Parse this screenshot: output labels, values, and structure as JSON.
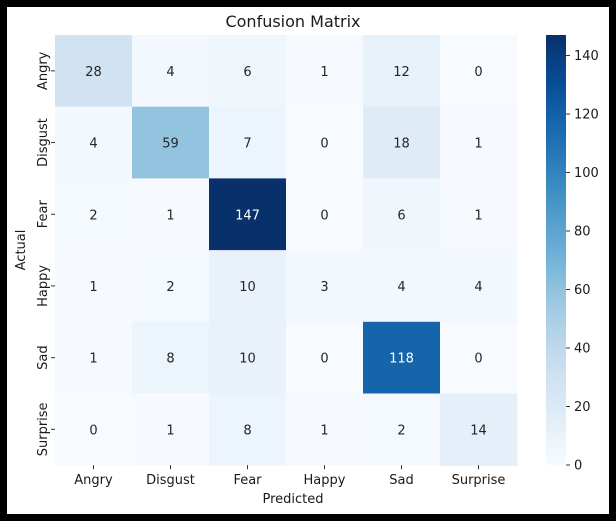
{
  "chart_data": {
    "type": "heatmap",
    "title": "Confusion Matrix",
    "xlabel": "Predicted",
    "ylabel": "Actual",
    "x_categories": [
      "Angry",
      "Disgust",
      "Fear",
      "Happy",
      "Sad",
      "Surprise"
    ],
    "y_categories": [
      "Angry",
      "Disgust",
      "Fear",
      "Happy",
      "Sad",
      "Surprise"
    ],
    "values": [
      [
        28,
        4,
        6,
        1,
        12,
        0
      ],
      [
        4,
        59,
        7,
        0,
        18,
        1
      ],
      [
        2,
        1,
        147,
        0,
        6,
        1
      ],
      [
        1,
        2,
        10,
        3,
        4,
        4
      ],
      [
        1,
        8,
        10,
        0,
        118,
        0
      ],
      [
        0,
        1,
        8,
        1,
        2,
        14
      ]
    ],
    "colorbar": {
      "min": 0,
      "max": 147,
      "ticks": [
        0,
        20,
        40,
        60,
        80,
        100,
        120,
        140
      ]
    },
    "colormap": "Blues",
    "colors": {
      "low": "#f7fbff",
      "high": "#08306b",
      "text_dark": "#262626",
      "text_light": "#ffffff"
    }
  }
}
